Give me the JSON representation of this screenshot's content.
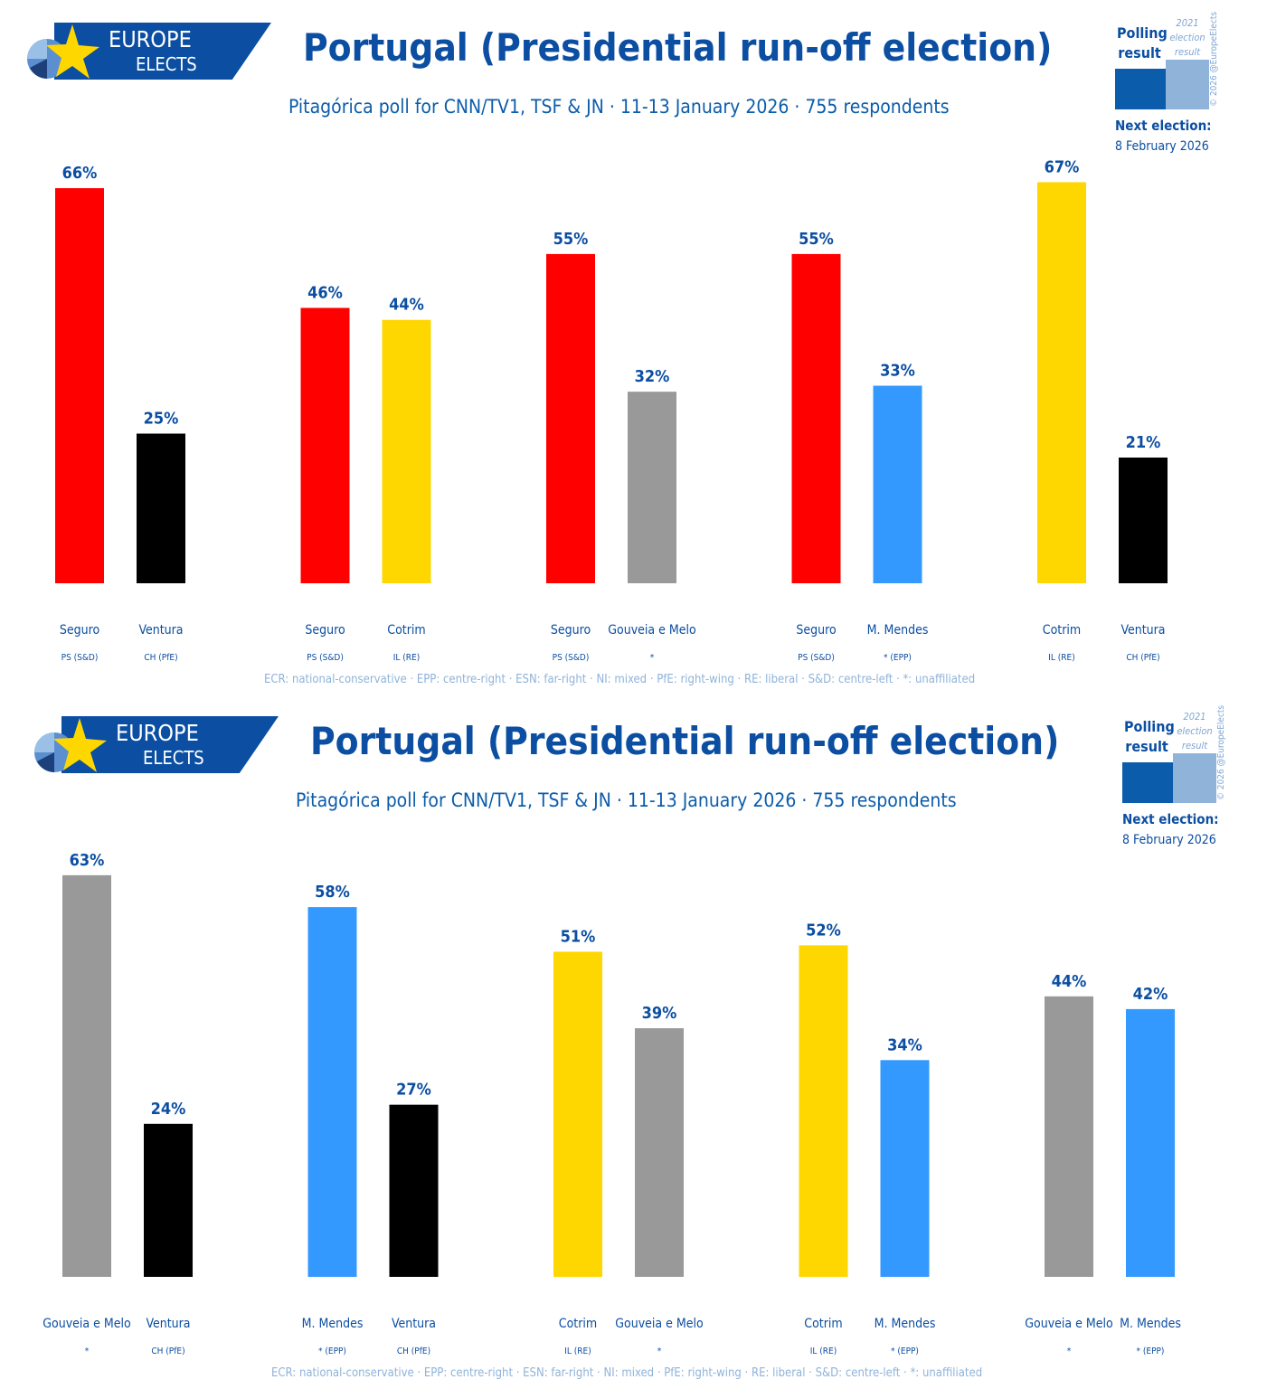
{
  "brand": {
    "line1": "EUROPE",
    "line2": "ELECTS",
    "colors": {
      "band": "#0b4ea2",
      "star": "#ffd700"
    }
  },
  "legend": {
    "polling": "Polling result",
    "previous": "2021 election result",
    "copyright": "© 2026 @EuropeElects",
    "next_label": "Next election:",
    "next_date": "8 February 2026"
  },
  "footer": "ECR: national-conservative · EPP: centre-right · ESN: far-right · NI: mixed · PfE: right-wing · RE: liberal · S&D: centre-left · *: unaffiliated",
  "colors": {
    "PS": "#ff0000",
    "CH": "#000000",
    "IL": "#ffd700",
    "IND": "#999999",
    "EPP": "#3399ff",
    "text": "#0b4ea2"
  },
  "chart_data": [
    {
      "type": "bar",
      "title": "Portugal (Presidential run-off election)",
      "subtitle": "Pitagórica poll for CNN/TV1, TSF & JN · 11-13 January 2026 · 755 respondents",
      "unit": "%",
      "matchups": [
        [
          {
            "name": "Seguro",
            "party": "PS (S&D)",
            "value": 66,
            "color": "#ff0000"
          },
          {
            "name": "Ventura",
            "party": "CH (PfE)",
            "value": 25,
            "color": "#000000"
          }
        ],
        [
          {
            "name": "Seguro",
            "party": "PS (S&D)",
            "value": 46,
            "color": "#ff0000"
          },
          {
            "name": "Cotrim",
            "party": "IL (RE)",
            "value": 44,
            "color": "#ffd700"
          }
        ],
        [
          {
            "name": "Seguro",
            "party": "PS (S&D)",
            "value": 55,
            "color": "#ff0000"
          },
          {
            "name": "Gouveia e Melo",
            "party": "*",
            "value": 32,
            "color": "#999999"
          }
        ],
        [
          {
            "name": "Seguro",
            "party": "PS (S&D)",
            "value": 55,
            "color": "#ff0000"
          },
          {
            "name": "M. Mendes",
            "party": "* (EPP)",
            "value": 33,
            "color": "#3399ff"
          }
        ],
        [
          {
            "name": "Cotrim",
            "party": "IL (RE)",
            "value": 67,
            "color": "#ffd700"
          },
          {
            "name": "Ventura",
            "party": "CH (PfE)",
            "value": 21,
            "color": "#000000"
          }
        ]
      ]
    },
    {
      "type": "bar",
      "title": "Portugal (Presidential run-off election)",
      "subtitle": "Pitagórica poll for CNN/TV1, TSF & JN · 11-13 January 2026 · 755 respondents",
      "unit": "%",
      "matchups": [
        [
          {
            "name": "Gouveia e Melo",
            "party": "*",
            "value": 63,
            "color": "#999999"
          },
          {
            "name": "Ventura",
            "party": "CH (PfE)",
            "value": 24,
            "color": "#000000"
          }
        ],
        [
          {
            "name": "M. Mendes",
            "party": "* (EPP)",
            "value": 58,
            "color": "#3399ff"
          },
          {
            "name": "Ventura",
            "party": "CH (PfE)",
            "value": 27,
            "color": "#000000"
          }
        ],
        [
          {
            "name": "Cotrim",
            "party": "IL (RE)",
            "value": 51,
            "color": "#ffd700"
          },
          {
            "name": "Gouveia e Melo",
            "party": "*",
            "value": 39,
            "color": "#999999"
          }
        ],
        [
          {
            "name": "Cotrim",
            "party": "IL (RE)",
            "value": 52,
            "color": "#ffd700"
          },
          {
            "name": "M. Mendes",
            "party": "* (EPP)",
            "value": 34,
            "color": "#3399ff"
          }
        ],
        [
          {
            "name": "Gouveia e Melo",
            "party": "*",
            "value": 44,
            "color": "#999999"
          },
          {
            "name": "M. Mendes",
            "party": "* (EPP)",
            "value": 42,
            "color": "#3399ff"
          }
        ]
      ]
    }
  ]
}
